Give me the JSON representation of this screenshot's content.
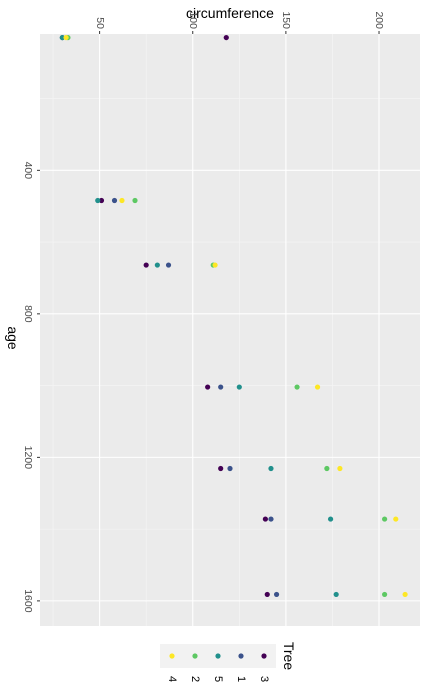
{
  "chart_data": {
    "type": "scatter",
    "xlabel": "circumference",
    "ylabel": "age",
    "xlim": [
      18,
      222
    ],
    "ylim": [
      20,
      1670
    ],
    "x_ticks": [
      50,
      100,
      150,
      200
    ],
    "y_ticks": [
      400,
      800,
      1200,
      1600
    ],
    "grid": true,
    "legend": {
      "title": "Tree",
      "position": "bottom"
    },
    "series": [
      {
        "name": "3",
        "color": "#440154",
        "points": [
          [
            118,
            30
          ],
          [
            51,
            484
          ],
          [
            75,
            664
          ],
          [
            108,
            1004
          ],
          [
            115,
            1231
          ],
          [
            139,
            1372
          ],
          [
            140,
            1582
          ]
        ]
      },
      {
        "name": "1",
        "color": "#3B528B",
        "points": [
          [
            30,
            30
          ],
          [
            58,
            484
          ],
          [
            87,
            664
          ],
          [
            115,
            1004
          ],
          [
            120,
            1231
          ],
          [
            142,
            1372
          ],
          [
            145,
            1582
          ]
        ]
      },
      {
        "name": "5",
        "color": "#21908C",
        "points": [
          [
            30,
            30
          ],
          [
            49,
            484
          ],
          [
            81,
            664
          ],
          [
            125,
            1004
          ],
          [
            142,
            1231
          ],
          [
            174,
            1372
          ],
          [
            177,
            1582
          ]
        ]
      },
      {
        "name": "2",
        "color": "#5DC863",
        "points": [
          [
            33,
            30
          ],
          [
            69,
            484
          ],
          [
            111,
            664
          ],
          [
            156,
            1004
          ],
          [
            172,
            1231
          ],
          [
            203,
            1372
          ],
          [
            203,
            1582
          ]
        ]
      },
      {
        "name": "4",
        "color": "#FDE725",
        "points": [
          [
            32,
            30
          ],
          [
            62,
            484
          ],
          [
            112,
            664
          ],
          [
            167,
            1004
          ],
          [
            179,
            1231
          ],
          [
            209,
            1372
          ],
          [
            214,
            1582
          ]
        ]
      }
    ]
  }
}
